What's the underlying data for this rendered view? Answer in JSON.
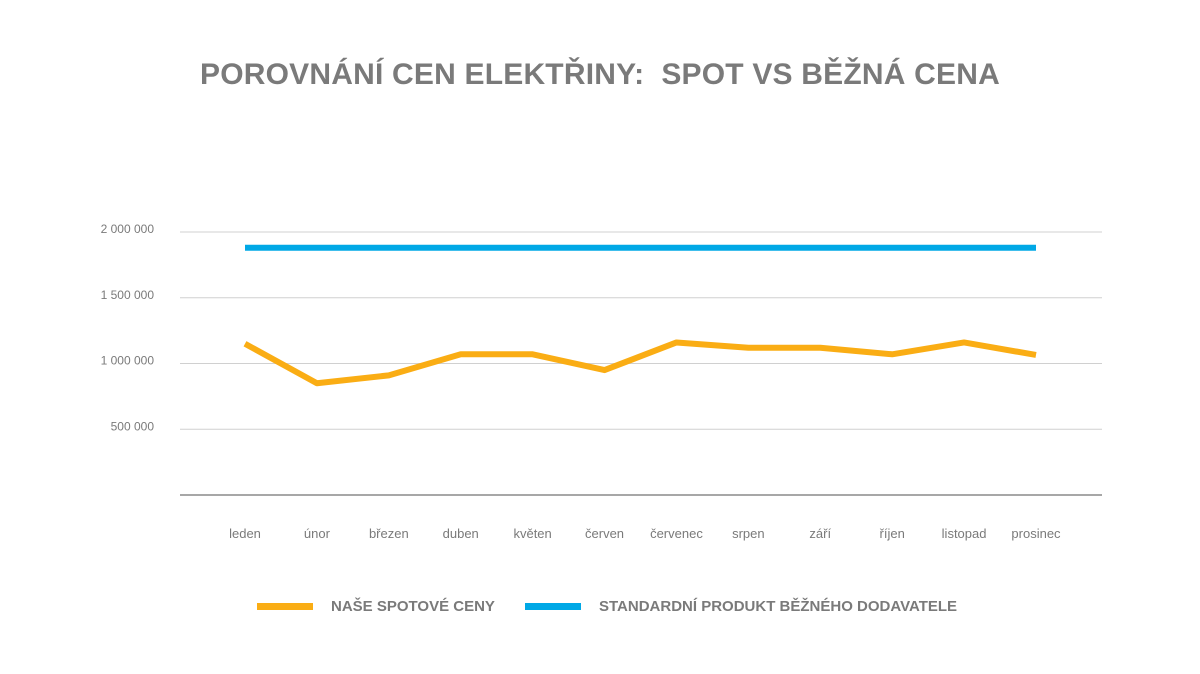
{
  "chart_data": {
    "type": "line",
    "title": "POROVNÁNÍ CEN ELEKTŘINY:  SPOT VS BĚŽNÁ CENA",
    "categories": [
      "leden",
      "únor",
      "březen",
      "duben",
      "květen",
      "červen",
      "červenec",
      "srpen",
      "září",
      "říjen",
      "listopad",
      "prosinec"
    ],
    "ylim": [
      0,
      2000000
    ],
    "yticks": [
      {
        "value": 500000,
        "label": "500 000"
      },
      {
        "value": 1000000,
        "label": "1 000 000"
      },
      {
        "value": 1500000,
        "label": "1 500 000"
      },
      {
        "value": 2000000,
        "label": "2 000 000"
      }
    ],
    "grid": true,
    "legend_position": "bottom",
    "series": [
      {
        "name": "NAŠE SPOTOVÉ CENY",
        "color": "#FAAD14",
        "values": [
          1150000,
          850000,
          910000,
          1070000,
          1070000,
          950000,
          1160000,
          1120000,
          1120000,
          1070000,
          1160000,
          1065000
        ]
      },
      {
        "name": "STANDARDNÍ PRODUKT BĚŽNÉHO DODAVATELE",
        "color": "#00A8E6",
        "values": [
          1880000,
          1880000,
          1880000,
          1880000,
          1880000,
          1880000,
          1880000,
          1880000,
          1880000,
          1880000,
          1880000,
          1880000
        ]
      }
    ]
  }
}
